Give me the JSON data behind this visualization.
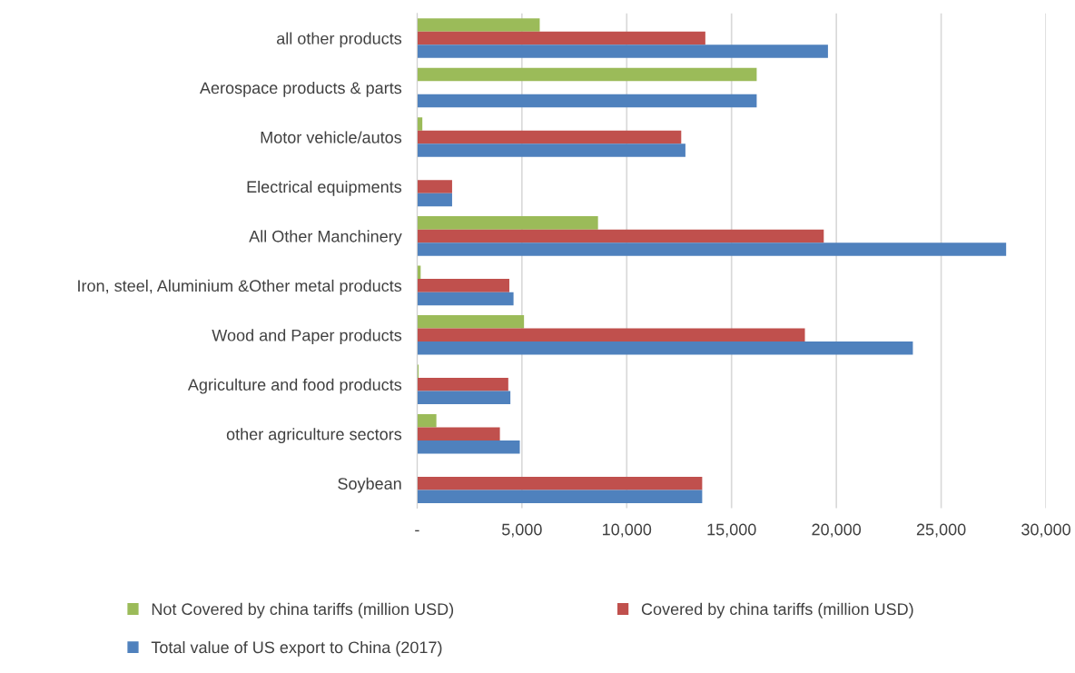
{
  "chart_data": {
    "type": "bar",
    "orientation": "horizontal",
    "categories": [
      "all other products",
      "Aerospace products & parts",
      "Motor vehicle/autos",
      "Electrical equipments",
      "All Other Manchinery",
      "Iron, steel, Aluminium &Other metal products",
      "Wood and Paper products",
      "Agriculture and food products",
      "other agriculture sectors",
      "Soybean"
    ],
    "series": [
      {
        "name": "Not Covered by china tariffs (million USD)",
        "color": "#9bbb59",
        "values": [
          5850,
          16200,
          250,
          null,
          8630,
          170,
          5100,
          70,
          920,
          null
        ]
      },
      {
        "name": "Covered by china tariffs (million USD)",
        "color": "#c0504d",
        "values": [
          13750,
          null,
          12600,
          1670,
          19400,
          4400,
          18500,
          4350,
          3950,
          13600
        ]
      },
      {
        "name": "Total value of US export to China (2017)",
        "color": "#4f81bd",
        "values": [
          19600,
          16200,
          12800,
          1670,
          28100,
          4600,
          23650,
          4450,
          4900,
          13600
        ]
      }
    ],
    "xlim": [
      0,
      30000
    ],
    "xticks": [
      {
        "value": 0,
        "label": "-"
      },
      {
        "value": 5000,
        "label": "5,000"
      },
      {
        "value": 10000,
        "label": "10,000"
      },
      {
        "value": 15000,
        "label": "15,000"
      },
      {
        "value": 20000,
        "label": "20,000"
      },
      {
        "value": 25000,
        "label": "25,000"
      },
      {
        "value": 30000,
        "label": "30,000"
      }
    ],
    "grid": "x",
    "legend": "bottom"
  }
}
